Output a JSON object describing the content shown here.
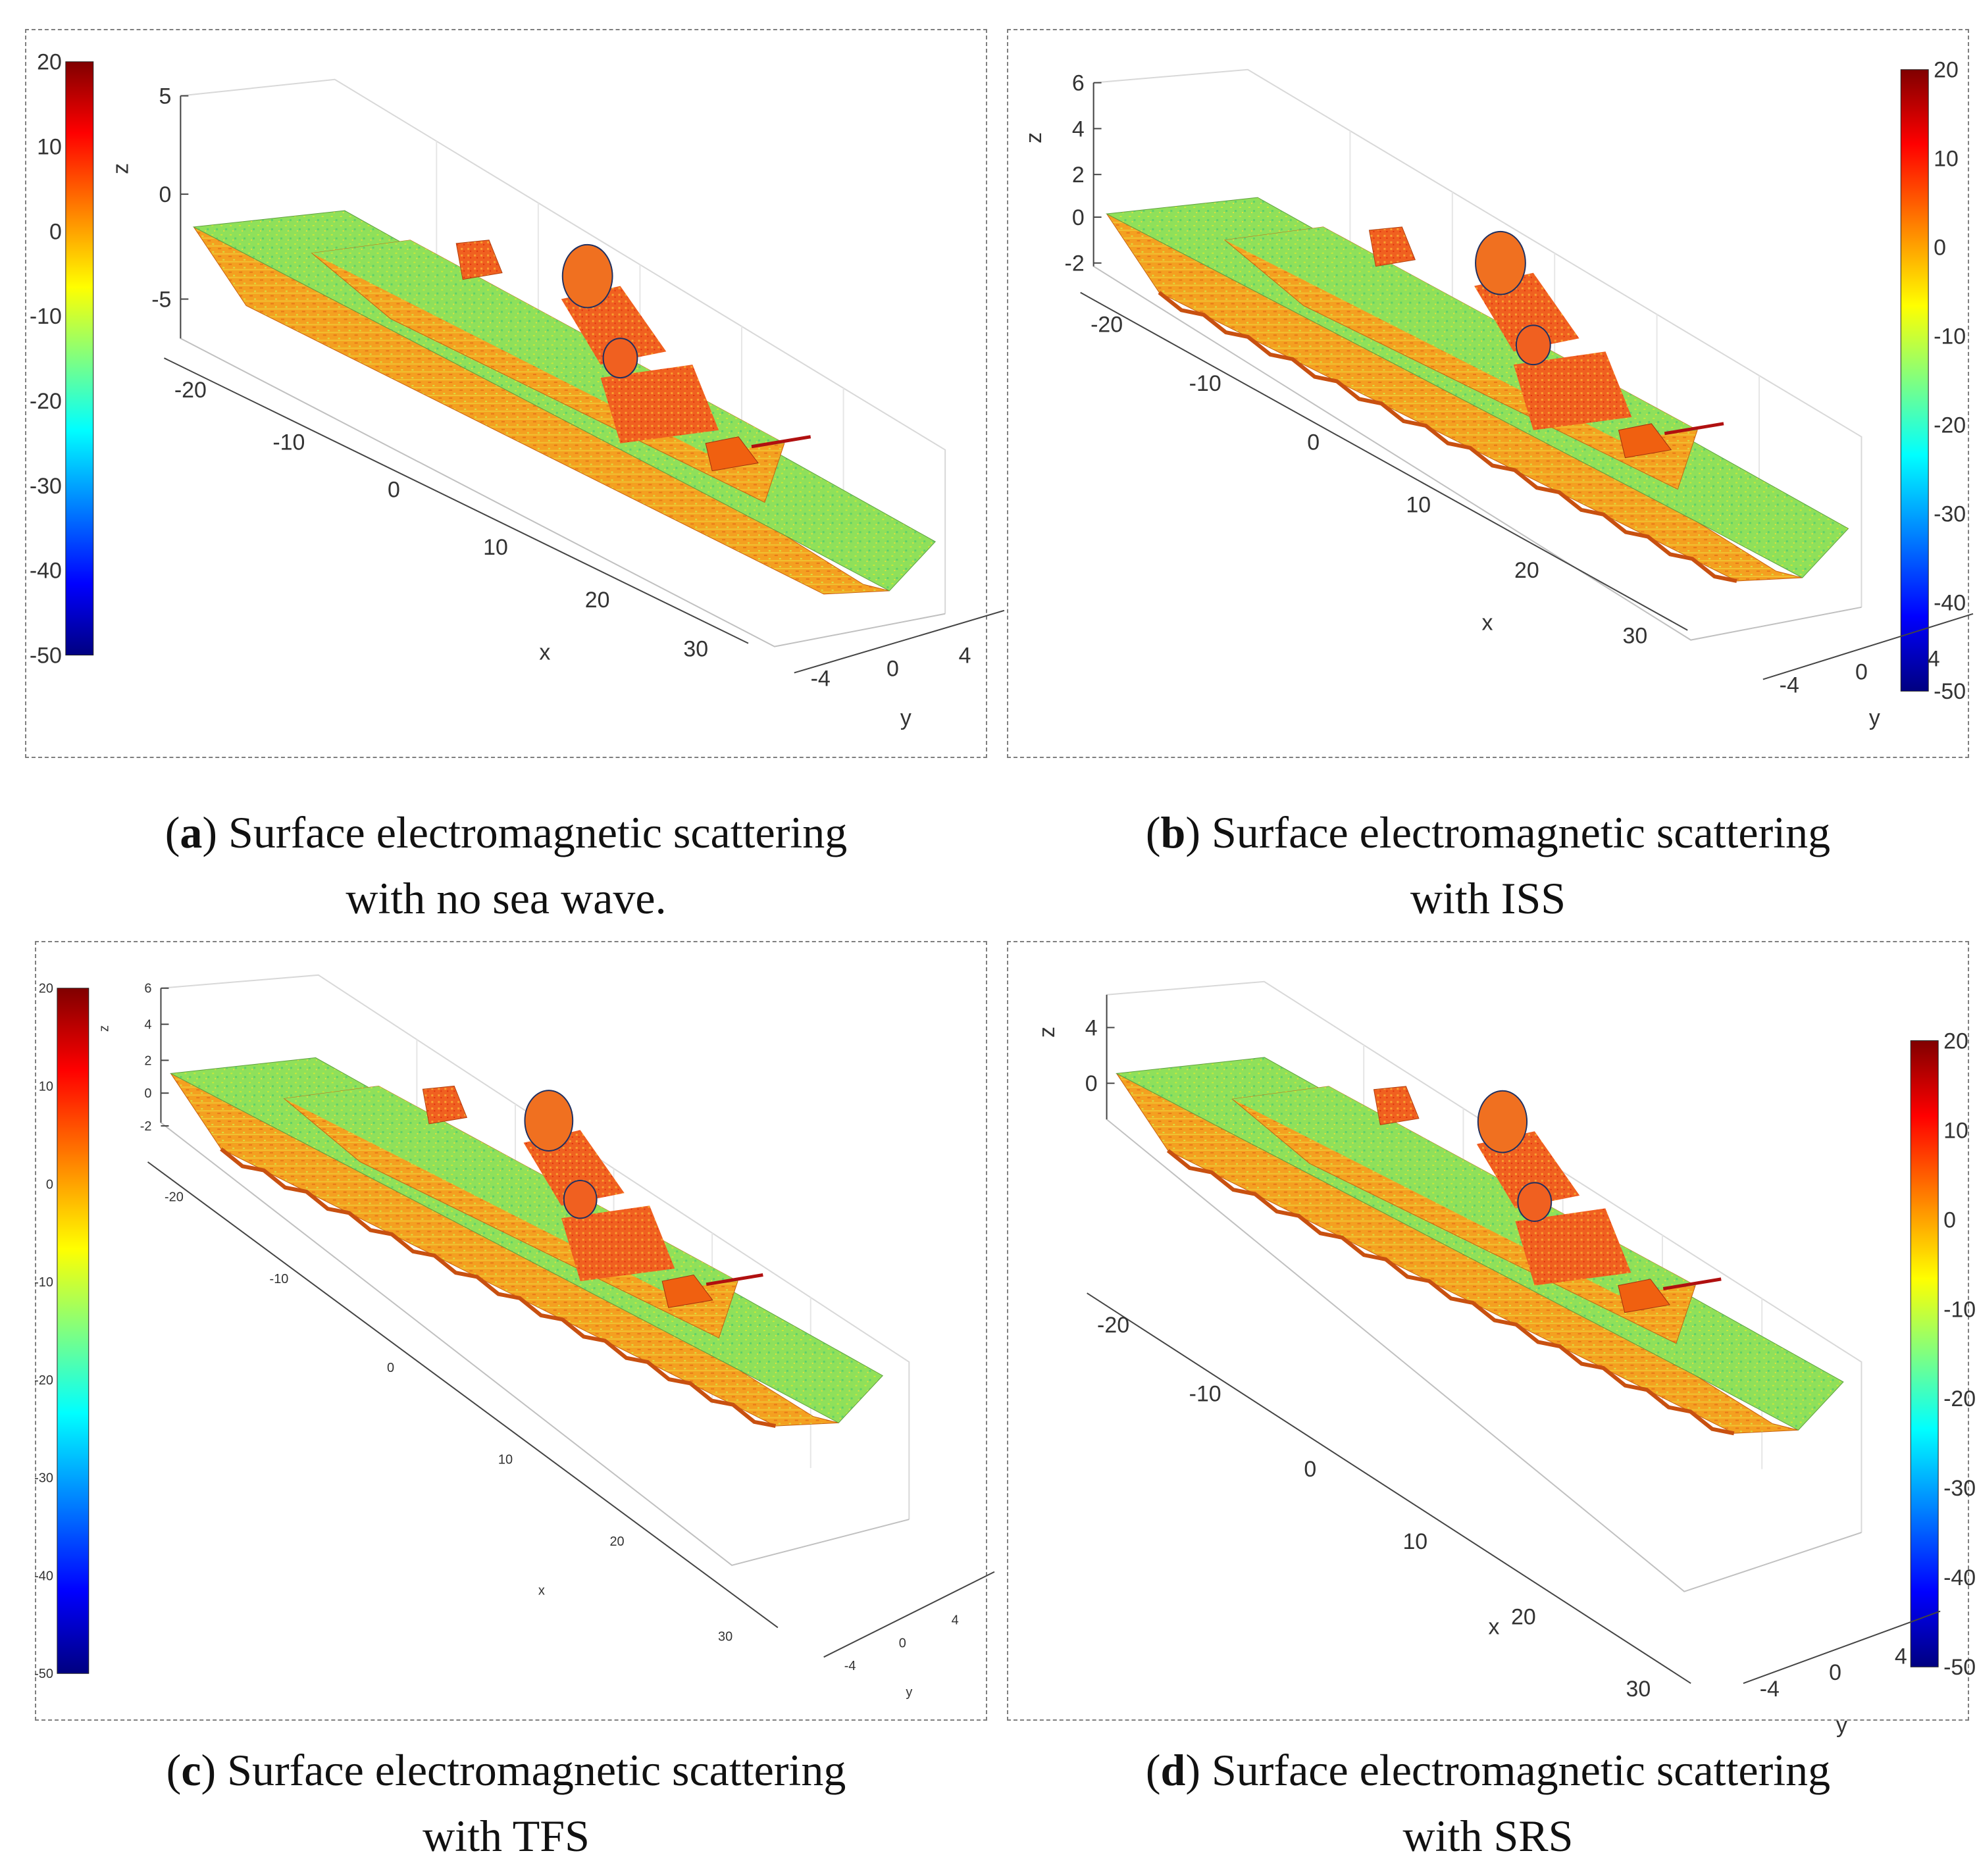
{
  "colormap_title": "",
  "chart_data": [
    {
      "id": "a",
      "type": "surface3d",
      "caption_letter": "a",
      "caption_text": ") Surface electromagnetic scattering",
      "caption_line2": "with no sea wave.",
      "xlabel": "x",
      "ylabel": "y",
      "zlabel": "z",
      "x_ticks": [
        "-20",
        "-10",
        "0",
        "10",
        "20",
        "30"
      ],
      "y_ticks": [
        "-4",
        "0",
        "4"
      ],
      "z_ticks": [
        "5",
        "0",
        "-5"
      ],
      "colorbar_ticks": [
        "20",
        "10",
        "0",
        "-10",
        "-20",
        "-30",
        "-40",
        "-50"
      ],
      "clim": [
        -50,
        20
      ]
    },
    {
      "id": "b",
      "type": "surface3d",
      "caption_letter": "b",
      "caption_text": ") Surface electromagnetic scattering",
      "caption_line2": "with ISS",
      "xlabel": "x",
      "ylabel": "y",
      "zlabel": "z",
      "x_ticks": [
        "-20",
        "-10",
        "0",
        "10",
        "20",
        "30"
      ],
      "y_ticks": [
        "-4",
        "0",
        "4"
      ],
      "z_ticks": [
        "6",
        "4",
        "2",
        "0",
        "-2"
      ],
      "colorbar_ticks": [
        "20",
        "10",
        "0",
        "-10",
        "-20",
        "-30",
        "-40",
        "-50"
      ],
      "clim": [
        -50,
        20
      ]
    },
    {
      "id": "c",
      "type": "surface3d",
      "caption_letter": "c",
      "caption_text": ") Surface electromagnetic scattering",
      "caption_line2": "with TFS",
      "xlabel": "x",
      "ylabel": "y",
      "zlabel": "z",
      "x_ticks": [
        "-20",
        "-10",
        "0",
        "10",
        "20",
        "30"
      ],
      "y_ticks": [
        "-4",
        "0",
        "4"
      ],
      "z_ticks": [
        "6",
        "4",
        "2",
        "0",
        "-2"
      ],
      "colorbar_ticks": [
        "20",
        "10",
        "0",
        "-10",
        "-20",
        "-30",
        "-40",
        "-50"
      ],
      "clim": [
        -50,
        20
      ]
    },
    {
      "id": "d",
      "type": "surface3d",
      "caption_letter": "d",
      "caption_text": ") Surface electromagnetic scattering",
      "caption_line2": "with SRS",
      "xlabel": "x",
      "ylabel": "y",
      "zlabel": "z",
      "x_ticks": [
        "-20",
        "-10",
        "0",
        "10",
        "20",
        "30"
      ],
      "y_ticks": [
        "-4",
        "0",
        "4"
      ],
      "z_ticks": [
        "4",
        "0"
      ],
      "colorbar_ticks": [
        "20",
        "10",
        "0",
        "-10",
        "-20",
        "-30",
        "-40",
        "-50"
      ],
      "clim": [
        -50,
        20
      ]
    }
  ]
}
